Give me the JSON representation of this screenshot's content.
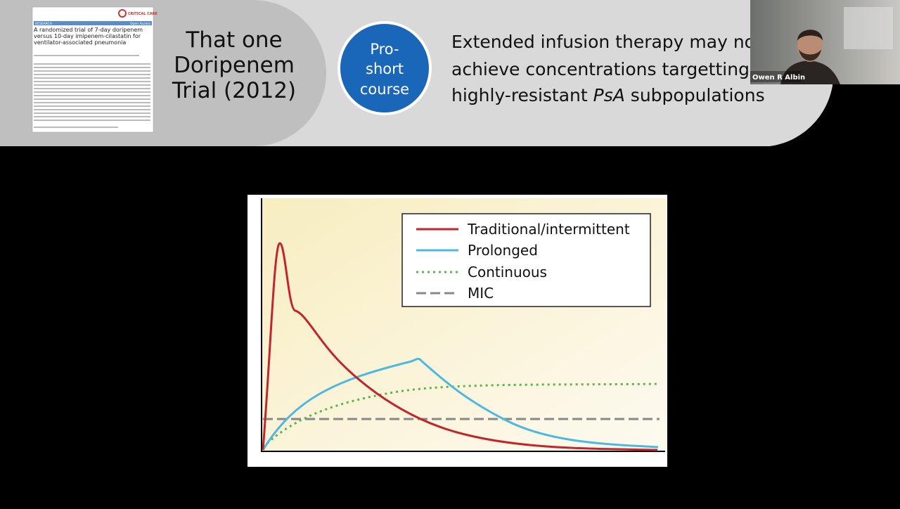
{
  "slide": {
    "paper": {
      "journal": "CRITICAL CARE",
      "section": "RESEARCH",
      "access": "Open Access",
      "title": "A randomized trial of 7-day doripenem versus 10-day imipenem-cilastatin for ventilator-associated pneumonia"
    },
    "heading": [
      "That one",
      "Doripenem",
      "Trial (2012)"
    ],
    "badge": [
      "Pro-",
      "short",
      "course"
    ],
    "statement": {
      "line1": "Extended infusion therapy may not",
      "line2": "achieve concentrations targetting",
      "line3_start": "highly-resistant ",
      "line3_italic": "PsA",
      "line3_end": " subpopulations"
    },
    "legend": [
      "Traditional/intermittent",
      "Prolonged",
      "Continuous",
      "MIC"
    ]
  },
  "webcam": {
    "name": "Owen R Albin"
  }
}
